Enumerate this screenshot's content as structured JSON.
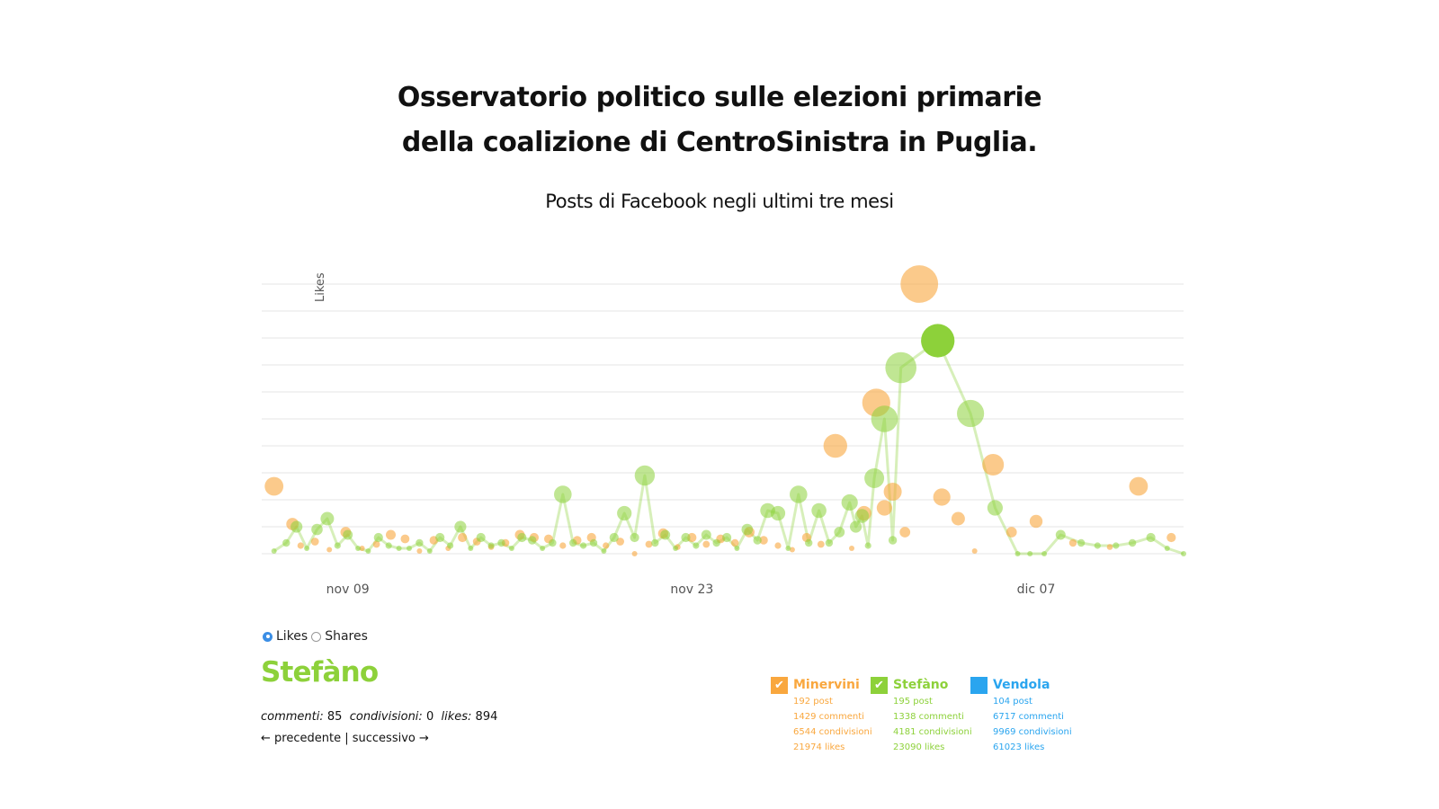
{
  "header": {
    "title_line1": "Osservatorio politico sulle elezioni primarie",
    "title_line2": "della coalizione di CentroSinistra in Puglia.",
    "subtitle": "Posts di Facebook negli ultimi tre mesi"
  },
  "colors": {
    "Minervini": "#f9a73e",
    "Stefano": "#8dd13a",
    "Vendola": "#2aa5ef",
    "grid": "#e6e6e6",
    "selected_radio": "#3b8ee5"
  },
  "chart_data": {
    "type": "scatter",
    "title": "Posts di Facebook negli ultimi tre mesi",
    "ylabel": "Likes",
    "xlabel": "",
    "x_ticks": [
      "nov 09",
      "nov 23",
      "dic 07"
    ],
    "grid": true,
    "y_unit": "likes per post (bubble size ~ value)",
    "series": [
      {
        "name": "Minervini",
        "color": "#f9a73e",
        "line": false,
        "points": [
          [
            "2014-11-06 12:00",
            250
          ],
          [
            "2014-11-07 06:00",
            110
          ],
          [
            "2014-11-07 14:00",
            30
          ],
          [
            "2014-11-08 04:00",
            45
          ],
          [
            "2014-11-08 18:00",
            15
          ],
          [
            "2014-11-09 10:00",
            80
          ],
          [
            "2014-11-10 02:00",
            20
          ],
          [
            "2014-11-10 16:00",
            35
          ],
          [
            "2014-11-11 06:00",
            70
          ],
          [
            "2014-11-11 20:00",
            55
          ],
          [
            "2014-11-12 10:00",
            10
          ],
          [
            "2014-11-13 00:00",
            50
          ],
          [
            "2014-11-13 14:00",
            20
          ],
          [
            "2014-11-14 04:00",
            60
          ],
          [
            "2014-11-14 18:00",
            45
          ],
          [
            "2014-11-15 08:00",
            25
          ],
          [
            "2014-11-15 22:00",
            40
          ],
          [
            "2014-11-16 12:00",
            70
          ],
          [
            "2014-11-17 02:00",
            60
          ],
          [
            "2014-11-17 16:00",
            55
          ],
          [
            "2014-11-18 06:00",
            30
          ],
          [
            "2014-11-18 20:00",
            50
          ],
          [
            "2014-11-19 10:00",
            60
          ],
          [
            "2014-11-20 00:00",
            30
          ],
          [
            "2014-11-20 14:00",
            45
          ],
          [
            "2014-11-21 04:00",
            0
          ],
          [
            "2014-11-21 18:00",
            35
          ],
          [
            "2014-11-22 08:00",
            75
          ],
          [
            "2014-11-22 22:00",
            25
          ],
          [
            "2014-11-23 12:00",
            60
          ],
          [
            "2014-11-24 02:00",
            35
          ],
          [
            "2014-11-24 16:00",
            55
          ],
          [
            "2014-11-25 06:00",
            40
          ],
          [
            "2014-11-25 20:00",
            80
          ],
          [
            "2014-11-26 10:00",
            50
          ],
          [
            "2014-11-27 00:00",
            30
          ],
          [
            "2014-11-27 14:00",
            15
          ],
          [
            "2014-11-28 04:00",
            60
          ],
          [
            "2014-11-28 18:00",
            35
          ],
          [
            "2014-11-29 08:00",
            400
          ],
          [
            "2014-11-30 00:00",
            20
          ],
          [
            "2014-11-30 12:00",
            150
          ],
          [
            "2014-12-01 00:00",
            560
          ],
          [
            "2014-12-01 08:00",
            170
          ],
          [
            "2014-12-01 16:00",
            230
          ],
          [
            "2014-12-02 04:00",
            80
          ],
          [
            "2014-12-02 18:00",
            1000
          ],
          [
            "2014-12-03 16:00",
            210
          ],
          [
            "2014-12-04 08:00",
            130
          ],
          [
            "2014-12-05 00:00",
            10
          ],
          [
            "2014-12-05 18:00",
            330
          ],
          [
            "2014-12-06 12:00",
            80
          ],
          [
            "2014-12-07 12:00",
            120
          ],
          [
            "2014-12-09 00:00",
            40
          ],
          [
            "2014-12-10 12:00",
            25
          ],
          [
            "2014-12-11 16:00",
            250
          ],
          [
            "2014-12-13 00:00",
            60
          ]
        ]
      },
      {
        "name": "Stefàno",
        "color": "#8dd13a",
        "line": true,
        "points": [
          [
            "2014-11-06 12:00",
            10
          ],
          [
            "2014-11-07 00:00",
            40
          ],
          [
            "2014-11-07 10:00",
            100
          ],
          [
            "2014-11-07 20:00",
            20
          ],
          [
            "2014-11-08 06:00",
            90
          ],
          [
            "2014-11-08 16:00",
            130
          ],
          [
            "2014-11-09 02:00",
            30
          ],
          [
            "2014-11-09 12:00",
            70
          ],
          [
            "2014-11-09 22:00",
            20
          ],
          [
            "2014-11-10 08:00",
            10
          ],
          [
            "2014-11-10 18:00",
            60
          ],
          [
            "2014-11-11 04:00",
            30
          ],
          [
            "2014-11-11 14:00",
            20
          ],
          [
            "2014-11-12 00:00",
            20
          ],
          [
            "2014-11-12 10:00",
            40
          ],
          [
            "2014-11-12 20:00",
            10
          ],
          [
            "2014-11-13 06:00",
            60
          ],
          [
            "2014-11-13 16:00",
            30
          ],
          [
            "2014-11-14 02:00",
            100
          ],
          [
            "2014-11-14 12:00",
            20
          ],
          [
            "2014-11-14 22:00",
            60
          ],
          [
            "2014-11-15 08:00",
            30
          ],
          [
            "2014-11-15 18:00",
            40
          ],
          [
            "2014-11-16 04:00",
            20
          ],
          [
            "2014-11-16 14:00",
            60
          ],
          [
            "2014-11-17 00:00",
            50
          ],
          [
            "2014-11-17 10:00",
            20
          ],
          [
            "2014-11-17 20:00",
            40
          ],
          [
            "2014-11-18 06:00",
            220
          ],
          [
            "2014-11-18 16:00",
            40
          ],
          [
            "2014-11-19 02:00",
            30
          ],
          [
            "2014-11-19 12:00",
            40
          ],
          [
            "2014-11-19 22:00",
            10
          ],
          [
            "2014-11-20 08:00",
            60
          ],
          [
            "2014-11-20 18:00",
            150
          ],
          [
            "2014-11-21 04:00",
            60
          ],
          [
            "2014-11-21 14:00",
            290
          ],
          [
            "2014-11-22 00:00",
            40
          ],
          [
            "2014-11-22 10:00",
            70
          ],
          [
            "2014-11-22 20:00",
            20
          ],
          [
            "2014-11-23 06:00",
            60
          ],
          [
            "2014-11-23 16:00",
            30
          ],
          [
            "2014-11-24 02:00",
            70
          ],
          [
            "2014-11-24 12:00",
            40
          ],
          [
            "2014-11-24 22:00",
            60
          ],
          [
            "2014-11-25 08:00",
            20
          ],
          [
            "2014-11-25 18:00",
            90
          ],
          [
            "2014-11-26 04:00",
            50
          ],
          [
            "2014-11-26 14:00",
            160
          ],
          [
            "2014-11-27 00:00",
            150
          ],
          [
            "2014-11-27 10:00",
            20
          ],
          [
            "2014-11-27 20:00",
            220
          ],
          [
            "2014-11-28 06:00",
            40
          ],
          [
            "2014-11-28 16:00",
            160
          ],
          [
            "2014-11-29 02:00",
            40
          ],
          [
            "2014-11-29 12:00",
            80
          ],
          [
            "2014-11-29 22:00",
            190
          ],
          [
            "2014-11-30 04:00",
            100
          ],
          [
            "2014-11-30 10:00",
            140
          ],
          [
            "2014-11-30 16:00",
            30
          ],
          [
            "2014-11-30 22:00",
            280
          ],
          [
            "2014-12-01 08:00",
            500
          ],
          [
            "2014-12-01 16:00",
            50
          ],
          [
            "2014-12-02 00:00",
            690
          ],
          [
            "2014-12-03 12:00",
            790
          ],
          [
            "2014-12-04 20:00",
            520
          ],
          [
            "2014-12-05 20:00",
            170
          ],
          [
            "2014-12-06 18:00",
            0
          ],
          [
            "2014-12-07 06:00",
            0
          ],
          [
            "2014-12-07 20:00",
            0
          ],
          [
            "2014-12-08 12:00",
            70
          ],
          [
            "2014-12-09 08:00",
            40
          ],
          [
            "2014-12-10 00:00",
            30
          ],
          [
            "2014-12-10 18:00",
            30
          ],
          [
            "2014-12-11 10:00",
            40
          ],
          [
            "2014-12-12 04:00",
            60
          ],
          [
            "2014-12-12 20:00",
            20
          ],
          [
            "2014-12-13 12:00",
            0
          ]
        ]
      },
      {
        "name": "Vendola",
        "color": "#2aa5ef",
        "line": false,
        "points": []
      }
    ]
  },
  "controls": {
    "likes_label": "Likes",
    "shares_label": "Shares"
  },
  "detail": {
    "name": "Stefàno",
    "comments_label": "commenti:",
    "comments_value": "85",
    "shares_label": "condivisioni:",
    "shares_value": "0",
    "likes_label": "likes:",
    "likes_value": "894",
    "prev": "← precedente",
    "sep": "|",
    "next": "successivo →"
  },
  "legend": [
    {
      "name": "Minervini",
      "checked": true,
      "posts": "192 post",
      "comments": "1429 commenti",
      "shares": "6544 condivisioni",
      "likes": "21974 likes"
    },
    {
      "name": "Stefàno",
      "checked": true,
      "posts": "195 post",
      "comments": "1338 commenti",
      "shares": "4181 condivisioni",
      "likes": "23090 likes"
    },
    {
      "name": "Vendola",
      "checked": false,
      "posts": "104 post",
      "comments": "6717 commenti",
      "shares": "9969 condivisioni",
      "likes": "61023 likes"
    }
  ]
}
